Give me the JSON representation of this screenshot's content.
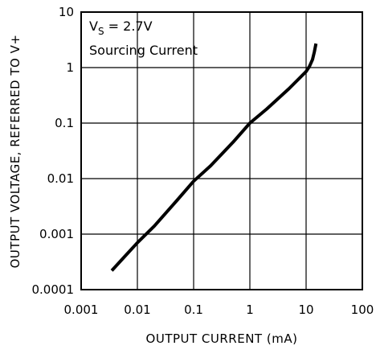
{
  "chart_data": {
    "type": "line",
    "xlabel": "OUTPUT CURRENT (mA)",
    "ylabel": "OUTPUT VOLTAGE, REFERRED TO V+",
    "x_scale": "log",
    "y_scale": "log",
    "xlim": [
      0.001,
      100
    ],
    "ylim": [
      0.0001,
      10
    ],
    "x_tick_labels": [
      "0.001",
      "0.01",
      "0.1",
      "1",
      "10",
      "100"
    ],
    "y_tick_labels": [
      "0.0001",
      "0.001",
      "0.01",
      "0.1",
      "1",
      "10"
    ],
    "grid": true,
    "annotation": {
      "line1_main": "V",
      "line1_sub": "S",
      "line1_rest": " = 2.7V",
      "line2": "Sourcing Current"
    },
    "series": [
      {
        "x": [
          0.0035,
          0.006,
          0.01,
          0.02,
          0.05,
          0.1,
          0.2,
          0.5,
          1,
          2,
          5,
          10,
          11.5,
          13,
          14,
          15
        ],
        "y": [
          0.00022,
          0.0004,
          0.0007,
          0.0014,
          0.004,
          0.009,
          0.017,
          0.045,
          0.1,
          0.18,
          0.42,
          0.85,
          1.05,
          1.4,
          1.9,
          2.7
        ]
      }
    ]
  }
}
